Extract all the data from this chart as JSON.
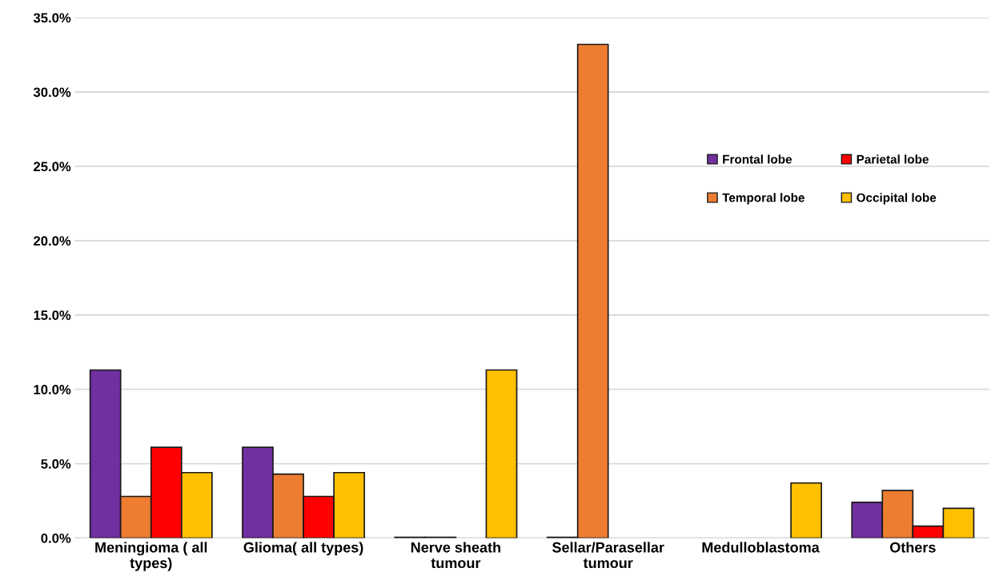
{
  "chart_data": {
    "type": "bar",
    "categories": [
      "Meningioma ( all\ntypes)",
      "Glioma( all types)",
      "Nerve sheath\ntumour",
      "Sellar/Parasellar\ntumour",
      "Medulloblastoma",
      "Others"
    ],
    "series": [
      {
        "name": "Frontal lobe",
        "color": "#7030a0",
        "values": [
          11.3,
          6.1,
          0.05,
          0.05,
          null,
          2.4
        ]
      },
      {
        "name": "Temporal lobe",
        "color": "#ed7d31",
        "values": [
          2.8,
          4.3,
          0.05,
          33.2,
          null,
          3.2
        ]
      },
      {
        "name": "Parietal lobe",
        "color": "#ff0000",
        "values": [
          6.1,
          2.8,
          null,
          null,
          null,
          0.8
        ]
      },
      {
        "name": "Occipital lobe",
        "color": "#ffc000",
        "values": [
          4.4,
          4.4,
          11.3,
          null,
          3.7,
          2.0
        ]
      }
    ],
    "ylim": [
      0,
      35
    ],
    "yticks": [
      {
        "value": 0,
        "label": "0.0%"
      },
      {
        "value": 5,
        "label": "5.0%"
      },
      {
        "value": 10,
        "label": "10.0%"
      },
      {
        "value": 15,
        "label": "15.0%"
      },
      {
        "value": 20,
        "label": "20.0%"
      },
      {
        "value": 25,
        "label": "25.0%"
      },
      {
        "value": 30,
        "label": "30.0%"
      },
      {
        "value": 35,
        "label": "35.0%"
      }
    ],
    "grid": "y",
    "legend": "right"
  }
}
